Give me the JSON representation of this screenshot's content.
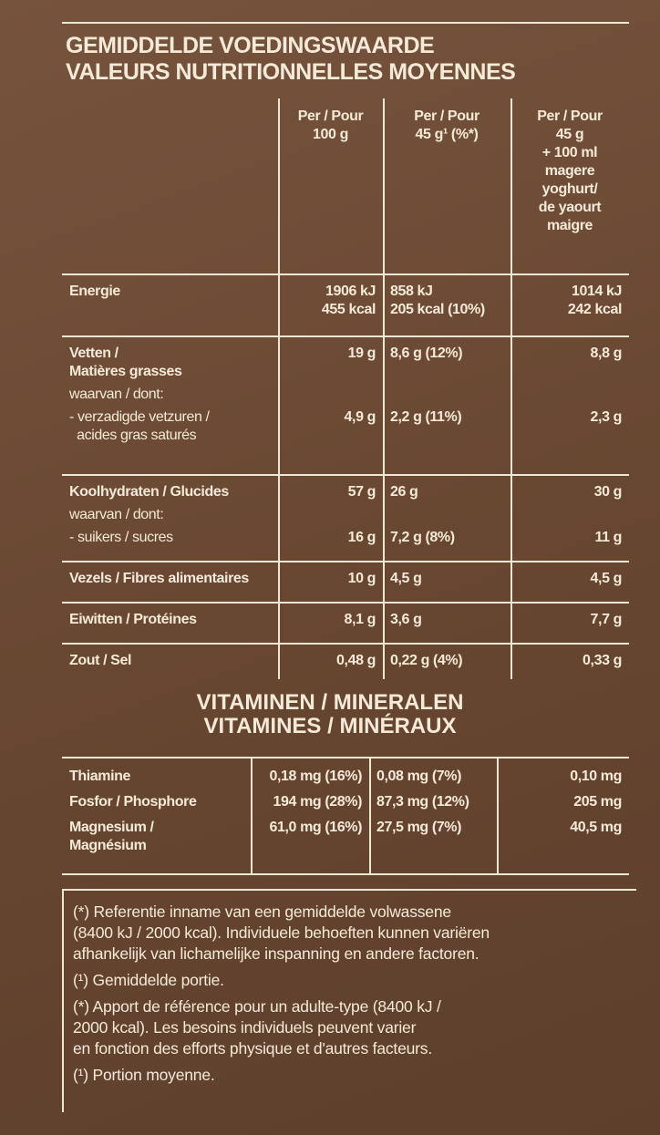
{
  "header": {
    "title": [
      "GEMIDDELDE VOEDINGSWAARDE",
      "VALEURS NUTRITIONNELLES MOYENNES"
    ]
  },
  "table": {
    "columns": [
      [
        "Per / Pour",
        "100 g"
      ],
      [
        "Per / Pour",
        "45 g¹ (%*)"
      ],
      [
        "Per / Pour",
        "45 g",
        "+ 100 ml",
        "magere",
        "yoghurt/",
        "de yaourt",
        "maigre"
      ]
    ],
    "groups": [
      {
        "rows": [
          {
            "label": [
              "Energie"
            ],
            "values": [
              [
                "1906 kJ",
                "455 kcal"
              ],
              [
                "858 kJ",
                "205 kcal (10%)"
              ],
              [
                "1014 kJ",
                "242 kcal"
              ]
            ]
          }
        ]
      },
      {
        "rows": [
          {
            "label": [
              "Vetten /",
              "Matières grasses"
            ],
            "values": [
              [
                "19 g"
              ],
              [
                "8,6 g (12%)"
              ],
              [
                "8,8 g"
              ]
            ]
          },
          {
            "label": [
              "waarvan / dont:"
            ]
          },
          {
            "label": [
              "- verzadigde vetzuren /",
              "  acides gras saturés"
            ],
            "values": [
              [
                "4,9 g"
              ],
              [
                "2,2 g (11%)"
              ],
              [
                "2,3 g"
              ]
            ]
          }
        ]
      },
      {
        "rows": [
          {
            "label": [
              "Koolhydraten / Glucides"
            ],
            "values": [
              [
                "57 g"
              ],
              [
                "26 g"
              ],
              [
                "30 g"
              ]
            ]
          },
          {
            "label": [
              "waarvan / dont:"
            ]
          },
          {
            "label": [
              "- suikers / sucres"
            ],
            "values": [
              [
                "16 g"
              ],
              [
                "7,2 g (8%)"
              ],
              [
                "11 g"
              ]
            ]
          }
        ]
      },
      {
        "rows": [
          {
            "label": [
              "Vezels / Fibres alimentaires"
            ],
            "values": [
              [
                "10 g"
              ],
              [
                "4,5 g"
              ],
              [
                "4,5 g"
              ]
            ]
          }
        ]
      },
      {
        "rows": [
          {
            "label": [
              "Eiwitten / Protéines"
            ],
            "values": [
              [
                "8,1 g"
              ],
              [
                "3,6 g"
              ],
              [
                "7,7 g"
              ]
            ]
          }
        ]
      },
      {
        "rows": [
          {
            "label": [
              "Zout / Sel"
            ],
            "values": [
              [
                "0,48 g"
              ],
              [
                "0,22 g (4%)"
              ],
              [
                "0,33 g"
              ]
            ]
          }
        ]
      }
    ]
  },
  "vitamins": {
    "title": [
      "VITAMINEN / MINERALEN",
      "VITAMINES / MINÉRAUX"
    ],
    "rows": [
      {
        "label": [
          "Thiamine"
        ],
        "values": [
          "0,18 mg (16%)",
          "0,08 mg (7%)",
          "0,10 mg"
        ]
      },
      {
        "label": [
          "Fosfor / Phosphore"
        ],
        "values": [
          "194 mg (28%)",
          "87,3 mg (12%)",
          "205 mg"
        ]
      },
      {
        "label": [
          "Magnesium /",
          "Magnésium"
        ],
        "values": [
          "61,0 mg (16%)",
          "27,5 mg (7%)",
          "40,5 mg"
        ]
      }
    ]
  },
  "footnotes": [
    [
      "(*) Referentie inname van een gemiddelde volwassene",
      "(8400 kJ / 2000 kcal). Individuele behoeften kunnen variëren",
      "afhankelijk van lichamelijke inspanning en andere factoren."
    ],
    [
      "(¹) Gemiddelde portie."
    ],
    [
      "(*) Apport de référence pour un adulte-type (8400 kJ /",
      "2000 kcal). Les besoins individuels peuvent varier",
      "en fonction des efforts physique et d'autres facteurs."
    ],
    [
      "(¹) Portion moyenne."
    ]
  ]
}
